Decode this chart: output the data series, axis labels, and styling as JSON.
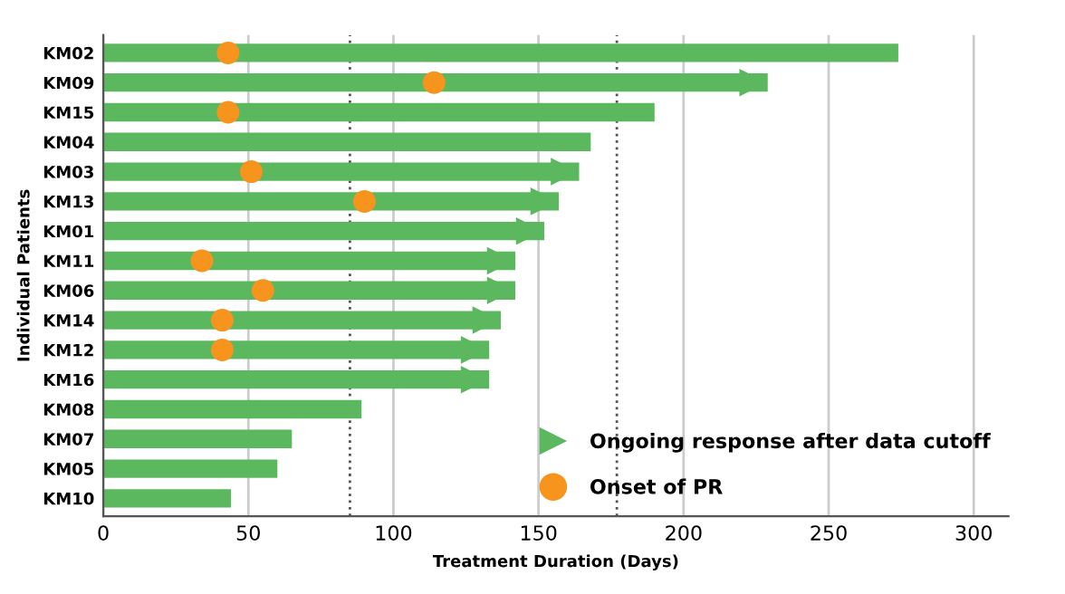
{
  "chart_data": {
    "type": "bar",
    "orientation": "horizontal",
    "xlabel": "Treatment Duration (Days)",
    "ylabel": "Individual Patients",
    "categories": [
      "KM02",
      "KM09",
      "KM15",
      "KM04",
      "KM03",
      "KM13",
      "KM01",
      "KM11",
      "KM06",
      "KM14",
      "KM12",
      "KM16",
      "KM08",
      "KM07",
      "KM05",
      "KM10"
    ],
    "series": [
      {
        "color": "#5cb85f",
        "values": [
          274,
          229,
          190,
          168,
          164,
          157,
          152,
          142,
          142,
          137,
          133,
          133,
          89,
          65,
          60,
          44
        ]
      },
      {
        "type": "scatter",
        "name": "Ongoing response after data cutoff",
        "marker": "triangle",
        "color": "#5cb85f",
        "values": [
          null,
          224,
          null,
          null,
          159,
          152,
          147,
          137,
          137,
          132,
          128,
          128,
          null,
          null,
          null,
          null
        ]
      },
      {
        "type": "scatter",
        "name": "Onset of PR",
        "marker": "circle",
        "color": "#f7941d",
        "values": [
          43,
          114,
          43,
          null,
          51,
          90,
          null,
          34,
          55,
          41,
          41,
          null,
          null,
          null,
          null,
          null
        ]
      }
    ],
    "xlim": [
      0,
      312
    ],
    "xticks": [
      0,
      50,
      100,
      150,
      200,
      250,
      300
    ],
    "grid": "x",
    "legend": "bottom right",
    "ref_lines": [
      {
        "axis": "x",
        "value": 85,
        "line_style": "dotted",
        "color": "#555555"
      },
      {
        "axis": "x",
        "value": 177,
        "line_style": "dotted",
        "color": "#555555"
      }
    ]
  }
}
